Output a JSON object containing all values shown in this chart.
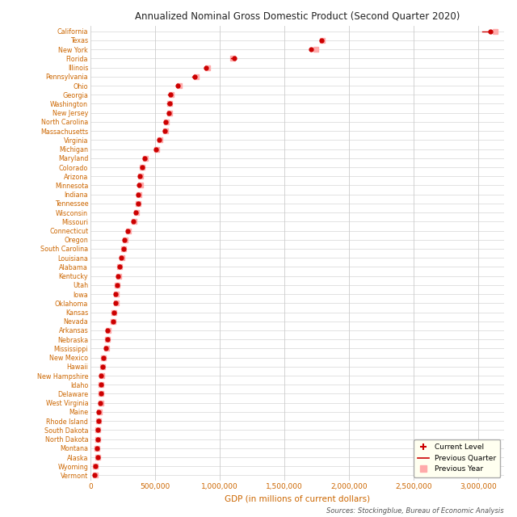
{
  "title": "Annualized Nominal Gross Domestic Product (Second Quarter 2020)",
  "xlabel": "GDP (in millions of current dollars)",
  "source": "Sources: Stockingblue, Bureau of Economic Analysis",
  "states": [
    "California",
    "Texas",
    "New York",
    "Florida",
    "Illinois",
    "Pennsylvania",
    "Ohio",
    "Georgia",
    "Washington",
    "New Jersey",
    "North Carolina",
    "Massachusetts",
    "Virginia",
    "Michigan",
    "Maryland",
    "Colorado",
    "Arizona",
    "Minnesota",
    "Indiana",
    "Tennessee",
    "Wisconsin",
    "Missouri",
    "Connecticut",
    "Oregon",
    "South Carolina",
    "Louisiana",
    "Alabama",
    "Kentucky",
    "Utah",
    "Iowa",
    "Oklahoma",
    "Kansas",
    "Nevada",
    "Arkansas",
    "Nebraska",
    "Mississippi",
    "New Mexico",
    "Hawaii",
    "New Hampshire",
    "Idaho",
    "Delaware",
    "West Virginia",
    "Maine",
    "Rhode Island",
    "South Dakota",
    "North Dakota",
    "Montana",
    "Alaska",
    "Wyoming",
    "Vermont"
  ],
  "current": [
    3091000,
    1789000,
    1706000,
    1111000,
    891000,
    804000,
    676000,
    619000,
    612000,
    608000,
    583000,
    578000,
    533000,
    508000,
    421000,
    397000,
    384000,
    378000,
    370000,
    366000,
    349000,
    334000,
    290000,
    265000,
    254000,
    240000,
    225000,
    213000,
    207000,
    196000,
    195000,
    181000,
    175000,
    133000,
    130000,
    121000,
    100000,
    93000,
    84000,
    82000,
    79000,
    78000,
    65000,
    63000,
    56000,
    55000,
    51000,
    58000,
    39000,
    34000
  ],
  "prev_quarter": [
    3030000,
    1773000,
    1698000,
    1089000,
    880000,
    790000,
    666000,
    602000,
    596000,
    596000,
    570000,
    563000,
    523000,
    498000,
    415000,
    387000,
    373000,
    372000,
    361000,
    358000,
    341000,
    328000,
    285000,
    258000,
    248000,
    233000,
    219000,
    209000,
    201000,
    191000,
    191000,
    176000,
    171000,
    130000,
    127000,
    118000,
    98000,
    91000,
    82000,
    80000,
    77000,
    76000,
    63000,
    61000,
    54000,
    53000,
    49000,
    55000,
    37000,
    33000
  ],
  "prev_year": [
    3130000,
    1793000,
    1742000,
    1100000,
    906000,
    820000,
    685000,
    623000,
    615000,
    615000,
    588000,
    582000,
    540000,
    515000,
    427000,
    403000,
    386000,
    385000,
    374000,
    371000,
    355000,
    339000,
    294000,
    268000,
    257000,
    244000,
    228000,
    217000,
    207000,
    199000,
    198000,
    184000,
    178000,
    135000,
    131000,
    123000,
    102000,
    95000,
    85000,
    83000,
    80000,
    79000,
    66000,
    64000,
    57000,
    56000,
    52000,
    59000,
    40000,
    35000
  ],
  "dot_color": "#cc0000",
  "line_color": "#cc0000",
  "square_color": "#ffaaaa",
  "bg_color": "#ffffff",
  "grid_color": "#cccccc",
  "title_color": "#222222",
  "label_color": "#cc6600",
  "source_color": "#555555",
  "xlim": [
    0,
    3200000
  ],
  "xticks": [
    0,
    500000,
    1000000,
    1500000,
    2000000,
    2500000,
    3000000
  ],
  "xtick_labels": [
    "0",
    "500,000",
    "1,000,000",
    "1,500,000",
    "2,000,000",
    "2,500,000",
    "3,000,000"
  ]
}
